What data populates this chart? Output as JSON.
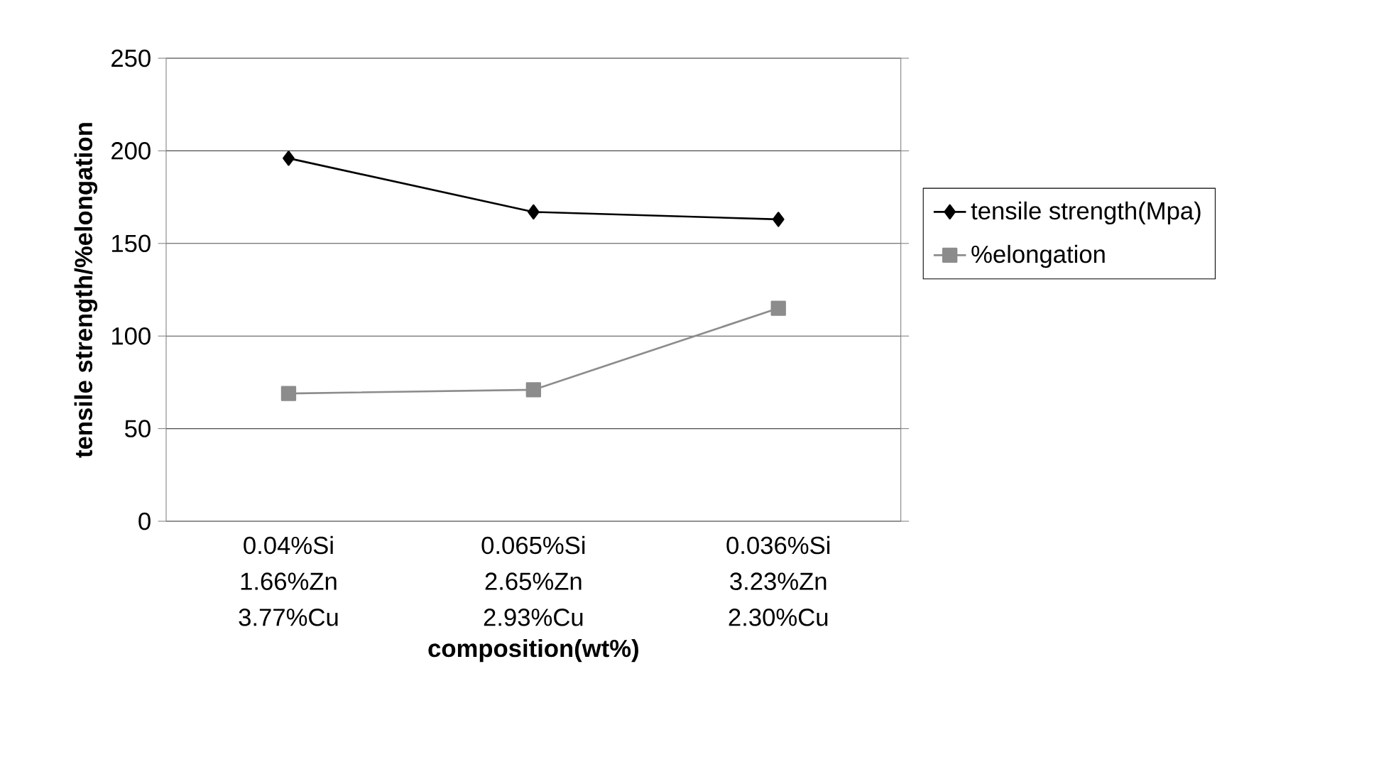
{
  "chart_data": {
    "type": "line",
    "xlabel": "composition(wt%)",
    "ylabel": "tensile strength/%elongation",
    "categories": [
      "0.04%Si 1.66%Zn 3.77%Cu",
      "0.065%Si 2.65%Zn 2.93%Cu",
      "0.036%Si 3.23%Zn 2.30%Cu"
    ],
    "series": [
      {
        "name": "tensile strength(Mpa)",
        "color": "#000000",
        "marker": "diamond",
        "values": [
          196,
          167,
          163
        ]
      },
      {
        "name": "%elongation",
        "color": "#8c8c8c",
        "marker": "square",
        "values": [
          69,
          71,
          115
        ]
      }
    ],
    "ylim": [
      0,
      250
    ],
    "yticks": [
      0,
      50,
      100,
      150,
      200,
      250
    ],
    "grid": "y",
    "legend": "right",
    "line_style": "solid"
  }
}
